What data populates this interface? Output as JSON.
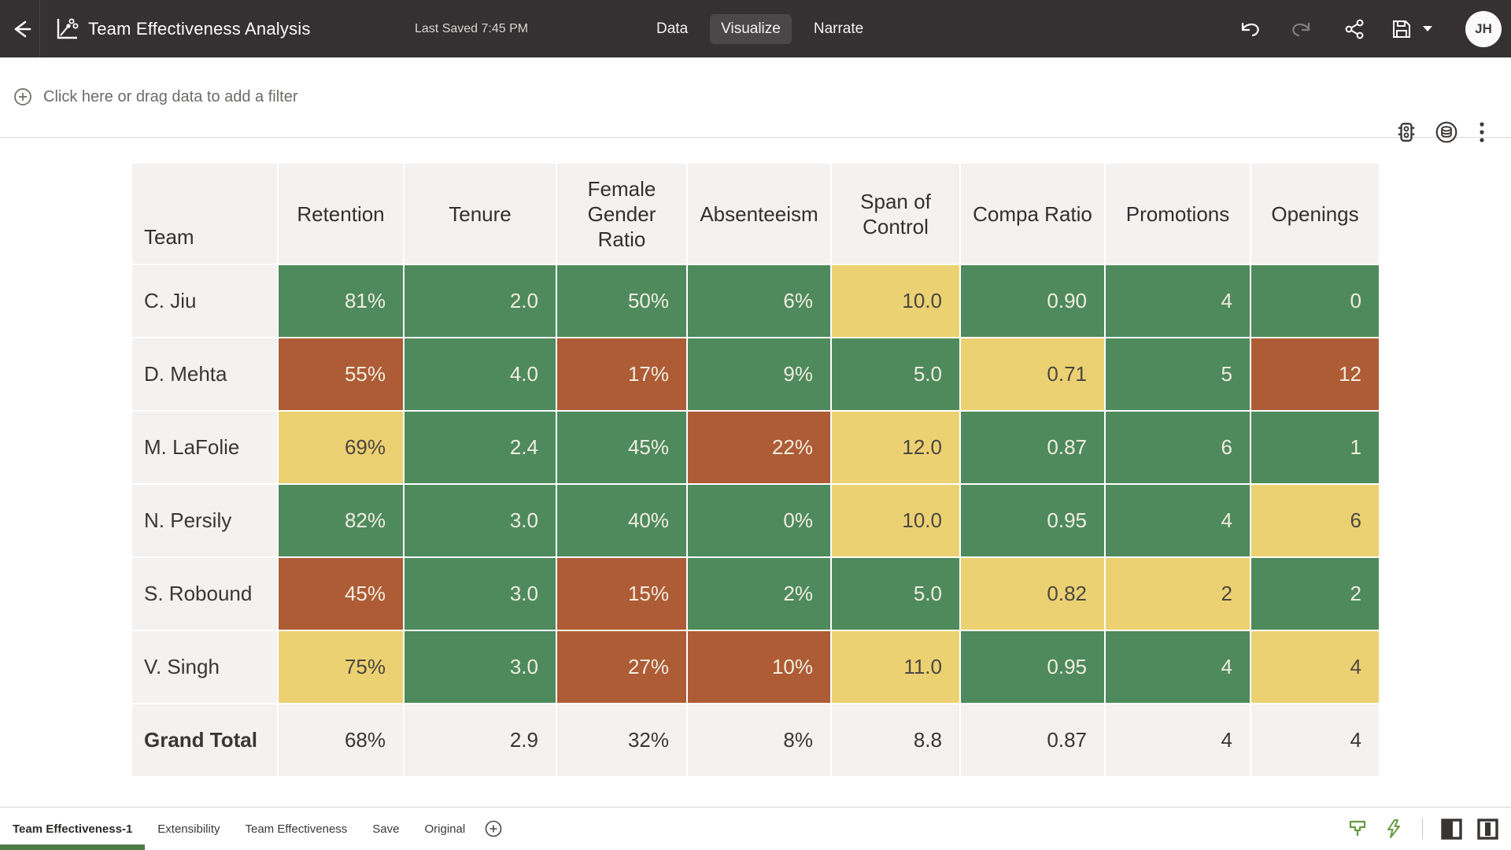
{
  "topbar": {
    "title": "Team Effectiveness Analysis",
    "last_saved": "Last Saved 7:45 PM",
    "tabs": [
      {
        "label": "Data",
        "active": false
      },
      {
        "label": "Visualize",
        "active": true
      },
      {
        "label": "Narrate",
        "active": false
      }
    ],
    "avatar_initials": "JH",
    "icons": [
      "back-arrow-icon",
      "chart-type-icon",
      "undo-icon",
      "redo-icon",
      "share-icon",
      "save-icon",
      "save-caret-icon"
    ]
  },
  "filterbar": {
    "prompt": "Click here or drag data to add a filter",
    "icons": [
      "add-filter-icon",
      "visualization-status-icon",
      "data-refresh-icon",
      "overflow-menu-icon"
    ]
  },
  "table": {
    "columns": [
      "Team",
      "Retention",
      "Tenure",
      "Female Gender Ratio",
      "Absenteeism",
      "Span of Control",
      "Compa Ratio",
      "Promotions",
      "Openings"
    ],
    "rows": [
      {
        "team": "C. Jiu",
        "cells": [
          {
            "v": "81%",
            "c": "green"
          },
          {
            "v": "2.0",
            "c": "green"
          },
          {
            "v": "50%",
            "c": "green"
          },
          {
            "v": "6%",
            "c": "green"
          },
          {
            "v": "10.0",
            "c": "yellow"
          },
          {
            "v": "0.90",
            "c": "green"
          },
          {
            "v": "4",
            "c": "green"
          },
          {
            "v": "0",
            "c": "green"
          }
        ]
      },
      {
        "team": "D. Mehta",
        "cells": [
          {
            "v": "55%",
            "c": "red"
          },
          {
            "v": "4.0",
            "c": "green"
          },
          {
            "v": "17%",
            "c": "red"
          },
          {
            "v": "9%",
            "c": "green"
          },
          {
            "v": "5.0",
            "c": "green"
          },
          {
            "v": "0.71",
            "c": "yellow"
          },
          {
            "v": "5",
            "c": "green"
          },
          {
            "v": "12",
            "c": "red"
          }
        ]
      },
      {
        "team": "M. LaFolie",
        "cells": [
          {
            "v": "69%",
            "c": "yellow"
          },
          {
            "v": "2.4",
            "c": "green"
          },
          {
            "v": "45%",
            "c": "green"
          },
          {
            "v": "22%",
            "c": "red"
          },
          {
            "v": "12.0",
            "c": "yellow"
          },
          {
            "v": "0.87",
            "c": "green"
          },
          {
            "v": "6",
            "c": "green"
          },
          {
            "v": "1",
            "c": "green"
          }
        ]
      },
      {
        "team": "N. Persily",
        "cells": [
          {
            "v": "82%",
            "c": "green"
          },
          {
            "v": "3.0",
            "c": "green"
          },
          {
            "v": "40%",
            "c": "green"
          },
          {
            "v": "0%",
            "c": "green"
          },
          {
            "v": "10.0",
            "c": "yellow"
          },
          {
            "v": "0.95",
            "c": "green"
          },
          {
            "v": "4",
            "c": "green"
          },
          {
            "v": "6",
            "c": "yellow"
          }
        ]
      },
      {
        "team": "S. Robound",
        "cells": [
          {
            "v": "45%",
            "c": "red"
          },
          {
            "v": "3.0",
            "c": "green"
          },
          {
            "v": "15%",
            "c": "red"
          },
          {
            "v": "2%",
            "c": "green"
          },
          {
            "v": "5.0",
            "c": "green"
          },
          {
            "v": "0.82",
            "c": "yellow"
          },
          {
            "v": "2",
            "c": "yellow"
          },
          {
            "v": "2",
            "c": "green"
          }
        ]
      },
      {
        "team": "V. Singh",
        "cells": [
          {
            "v": "75%",
            "c": "yellow"
          },
          {
            "v": "3.0",
            "c": "green"
          },
          {
            "v": "27%",
            "c": "red"
          },
          {
            "v": "10%",
            "c": "red"
          },
          {
            "v": "11.0",
            "c": "yellow"
          },
          {
            "v": "0.95",
            "c": "green"
          },
          {
            "v": "4",
            "c": "green"
          },
          {
            "v": "4",
            "c": "yellow"
          }
        ]
      }
    ],
    "grand_total": {
      "team": "Grand Total",
      "cells": [
        "68%",
        "2.9",
        "32%",
        "8%",
        "8.8",
        "0.87",
        "4",
        "4"
      ]
    }
  },
  "bottombar": {
    "tabs": [
      {
        "label": "Team Effectiveness-1",
        "active": true
      },
      {
        "label": "Extensibility",
        "active": false
      },
      {
        "label": "Team Effectiveness",
        "active": false
      },
      {
        "label": "Save",
        "active": false
      },
      {
        "label": "Original",
        "active": false
      }
    ],
    "icons": [
      "add-canvas-icon",
      "brush-icon",
      "auto-apply-bolt-icon",
      "left-panel-toggle-icon",
      "right-panel-toggle-icon"
    ]
  },
  "colors": {
    "topbar_bg": "#353031",
    "active_tab_pill": "#4b4647",
    "cell_green": "#4e8a5c",
    "cell_red": "#ae5c36",
    "cell_yellow": "#ecd173",
    "cell_neutral": "#f4f2f1",
    "canvas_tab_underline": "#4d7c45",
    "bottom_icon_green": "#679a41"
  }
}
